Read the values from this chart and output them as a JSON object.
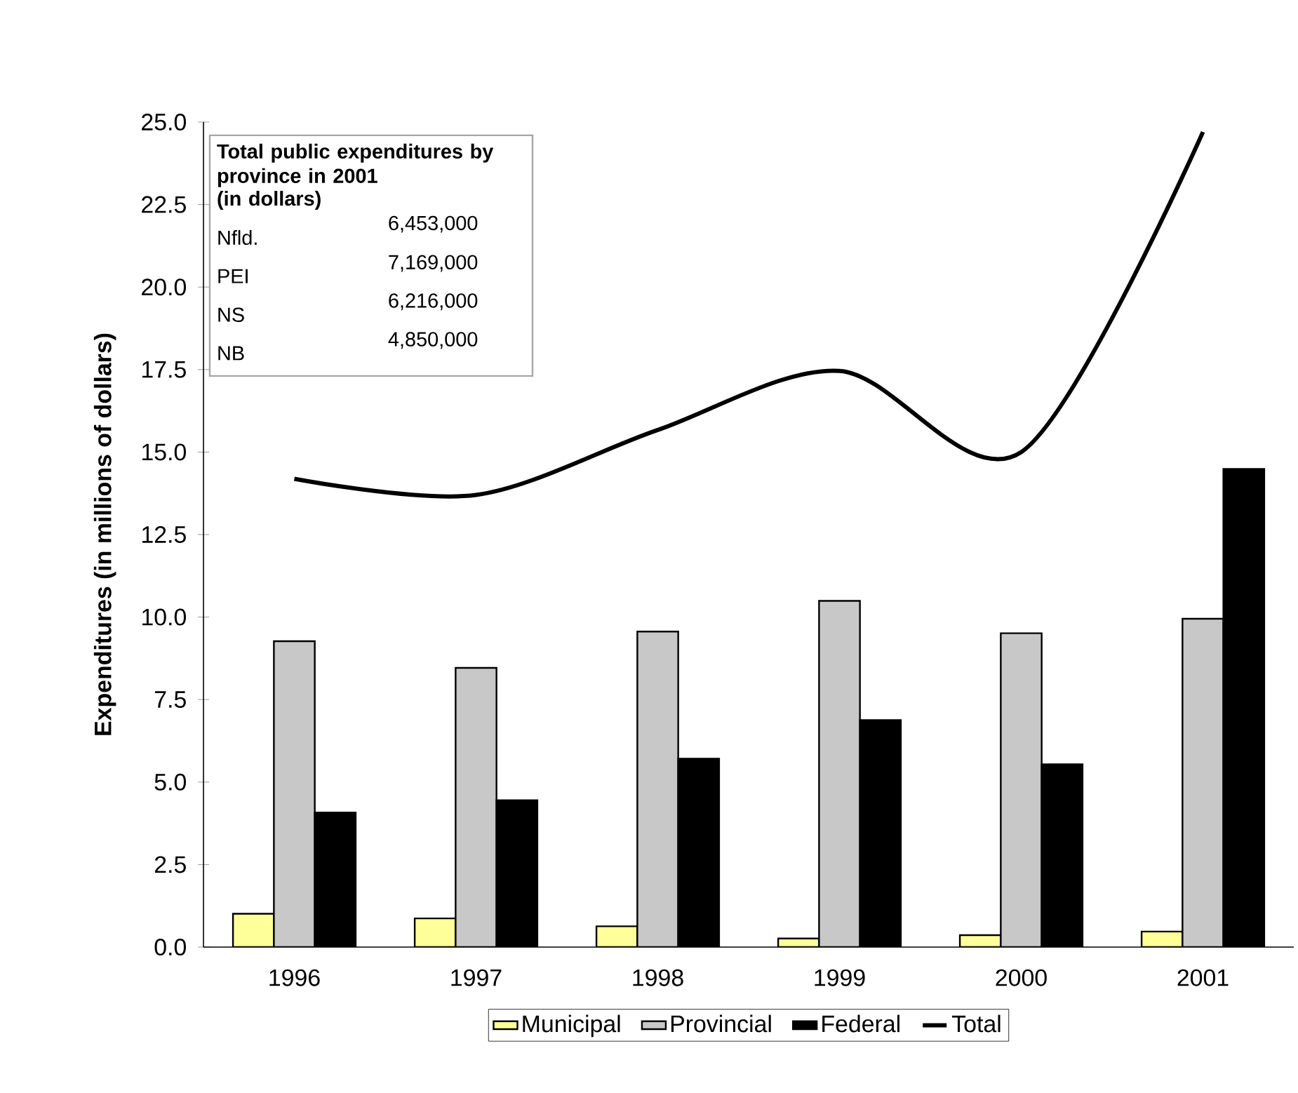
{
  "chart_data": {
    "type": "bar",
    "categories": [
      "1996",
      "1997",
      "1998",
      "1999",
      "2000",
      "2001"
    ],
    "ylabel": "Expenditures (in millions of dollars)",
    "ylim": [
      0,
      25
    ],
    "yticks": [
      {
        "value": 0,
        "label": "0.0"
      },
      {
        "value": 2.5,
        "label": "2.5"
      },
      {
        "value": 5,
        "label": "5.0"
      },
      {
        "value": 7.5,
        "label": "7.5"
      },
      {
        "value": 10,
        "label": "10.0"
      },
      {
        "value": 12.5,
        "label": "12.5"
      },
      {
        "value": 15,
        "label": "15.0"
      },
      {
        "value": 17.5,
        "label": "17.5"
      },
      {
        "value": 20,
        "label": "20.0"
      },
      {
        "value": 22.5,
        "label": "22.5"
      },
      {
        "value": 25,
        "label": "25.0"
      }
    ],
    "series": [
      {
        "name": "Municipal",
        "color": "#ffff99",
        "values": [
          1.01,
          0.87,
          0.63,
          0.26,
          0.36,
          0.47
        ]
      },
      {
        "name": "Provincial",
        "color": "#c8c8c8",
        "values": [
          9.27,
          8.46,
          9.56,
          10.49,
          9.51,
          9.95
        ]
      },
      {
        "name": "Federal",
        "color": "#000000",
        "values": [
          4.08,
          4.45,
          5.71,
          6.88,
          5.54,
          14.49
        ]
      },
      {
        "name": "Total",
        "type": "line",
        "color": "#000000",
        "values": [
          14.19,
          13.7,
          15.67,
          17.46,
          15.0,
          24.7
        ]
      }
    ],
    "legend": "bottom",
    "marker": "none",
    "grid": false,
    "annotations": [
      "Total public expenditures by province in 2001",
      "(in dollars)",
      "Nfld.",
      "6,453,000",
      "PEI",
      "7,169,000",
      "NS",
      "6,216,000",
      "NB",
      "4,850,000"
    ]
  }
}
